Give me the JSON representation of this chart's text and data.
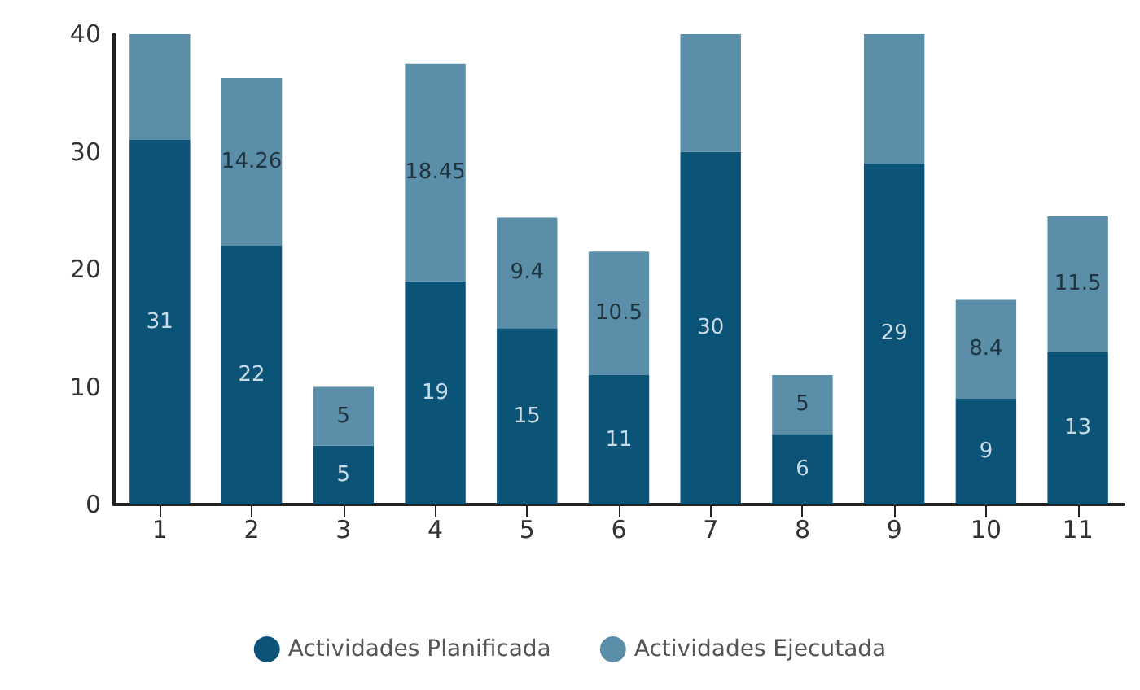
{
  "chart_data": {
    "type": "bar",
    "stacked": true,
    "categories": [
      "1",
      "2",
      "3",
      "4",
      "5",
      "6",
      "7",
      "8",
      "9",
      "10",
      "11"
    ],
    "series": [
      {
        "name": "Actividades Planificada",
        "color": "#0b5478",
        "values": [
          31,
          22,
          5,
          19,
          15,
          11,
          30,
          6,
          29,
          9,
          13
        ],
        "value_labels": [
          "31",
          "22",
          "5",
          "19",
          "15",
          "11",
          "30",
          "6",
          "29",
          "9",
          "13"
        ]
      },
      {
        "name": "Actividades Ejecutada",
        "color": "#5b8ea8",
        "values": [
          9,
          14.26,
          5,
          18.45,
          9.4,
          10.5,
          10,
          5,
          11,
          8.4,
          11.5
        ],
        "value_labels": [
          null,
          "14.26",
          "5",
          "18.45",
          "9.4",
          "10.5",
          null,
          "5",
          null,
          "8.4",
          "11.5"
        ]
      }
    ],
    "ylim": [
      0,
      40
    ],
    "yticks": [
      0,
      10,
      20,
      30,
      40
    ],
    "grid": false,
    "legend": "bottom"
  }
}
